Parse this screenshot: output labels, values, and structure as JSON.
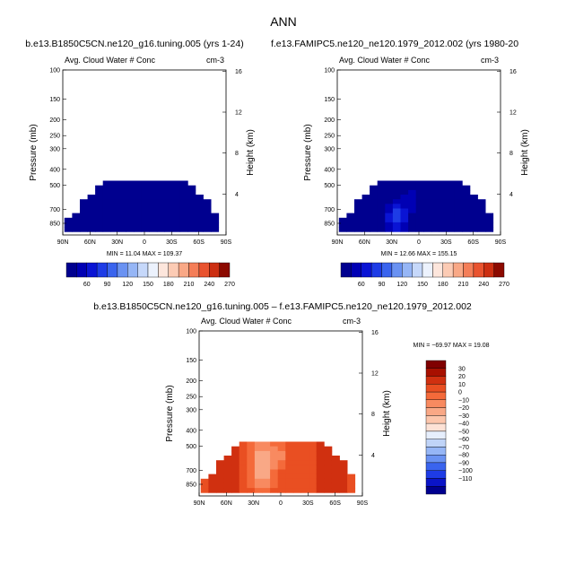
{
  "main_title": "ANN",
  "colors": {
    "base_scale": [
      "#00008f",
      "#0000b4",
      "#0a14d4",
      "#1e3ce6",
      "#3a64ee",
      "#6a92f2",
      "#96b6f6",
      "#c6d8fa",
      "#ecf2fd",
      "#fde6dc",
      "#fccbb4",
      "#f9a886",
      "#f47e58",
      "#e9532f",
      "#cc2f12",
      "#8c0a00"
    ],
    "diff_scale": [
      "#00008f",
      "#0a14c8",
      "#1e3ce6",
      "#3a64ee",
      "#6a92f2",
      "#96b6f6",
      "#c0d4f8",
      "#e6eefc",
      "#fde2d6",
      "#fcc6ac",
      "#f9a886",
      "#f88a60",
      "#f46a3a",
      "#e94f22",
      "#d03010",
      "#a81000",
      "#800000"
    ]
  },
  "chart_data": [
    {
      "type": "heatmap",
      "subtitle": "b.e13.B1850C5CN.ne120_g16.tuning.005 (yrs 1-24)",
      "title": "Avg. Cloud Water # Conc",
      "units": "cm-3",
      "ylabel": "Pressure (mb)",
      "ylabel_right": "Height (km)",
      "x_ticks": [
        "90N",
        "60N",
        "30N",
        "0",
        "30S",
        "60S",
        "90S"
      ],
      "y_ticks": [
        "100",
        "150",
        "200",
        "250",
        "300",
        "400",
        "500",
        "700",
        "850"
      ],
      "y_ticks_right": [
        "16",
        "12",
        "8",
        "4"
      ],
      "x_range": [
        90,
        -90
      ],
      "y_range": [
        100,
        1000
      ],
      "y_scale": "log",
      "stats": "MIN =   11.04   MAX =  109.37",
      "min": 11.04,
      "max": 109.37,
      "colorbar_labels": [
        "60",
        "90",
        "120",
        "150",
        "180",
        "210",
        "240",
        "270"
      ],
      "colorbar_orientation": "horizontal"
    },
    {
      "type": "heatmap",
      "subtitle": "f.e13.FAMIPC5.ne120_ne120.1979_2012.002 (yrs 1980-20",
      "title": "Avg. Cloud Water # Conc",
      "units": "cm-3",
      "ylabel": "Pressure (mb)",
      "ylabel_right": "Height (km)",
      "x_ticks": [
        "90N",
        "60N",
        "30N",
        "0",
        "30S",
        "60S",
        "90S"
      ],
      "y_ticks": [
        "100",
        "150",
        "200",
        "250",
        "300",
        "400",
        "500",
        "700",
        "850"
      ],
      "y_ticks_right": [
        "16",
        "12",
        "8",
        "4"
      ],
      "x_range": [
        90,
        -90
      ],
      "y_range": [
        100,
        1000
      ],
      "y_scale": "log",
      "stats": "MIN =   12.66   MAX =  155.15",
      "min": 12.66,
      "max": 155.15,
      "colorbar_labels": [
        "60",
        "90",
        "120",
        "150",
        "180",
        "210",
        "240",
        "270"
      ],
      "colorbar_orientation": "horizontal"
    },
    {
      "type": "heatmap",
      "subtitle": "b.e13.B1850C5CN.ne120_g16.tuning.005 – f.e13.FAMIPC5.ne120_ne120.1979_2012.002",
      "title": "Avg. Cloud Water # Conc",
      "units": "cm-3",
      "ylabel": "Pressure (mb)",
      "ylabel_right": "Height (km)",
      "x_ticks": [
        "90N",
        "60N",
        "30N",
        "0",
        "30S",
        "60S",
        "90S"
      ],
      "y_ticks": [
        "100",
        "150",
        "200",
        "250",
        "300",
        "400",
        "500",
        "700",
        "850"
      ],
      "y_ticks_right": [
        "16",
        "12",
        "8",
        "4"
      ],
      "x_range": [
        90,
        -90
      ],
      "y_range": [
        100,
        1000
      ],
      "y_scale": "log",
      "stats": "MIN =  −69.97   MAX =   19.08",
      "min": -69.97,
      "max": 19.08,
      "colorbar_labels": [
        "30",
        "20",
        "10",
        "0",
        "−10",
        "−20",
        "−30",
        "−40",
        "−50",
        "−60",
        "−70",
        "−80",
        "−90",
        "−100",
        "−110"
      ],
      "colorbar_orientation": "vertical"
    }
  ]
}
